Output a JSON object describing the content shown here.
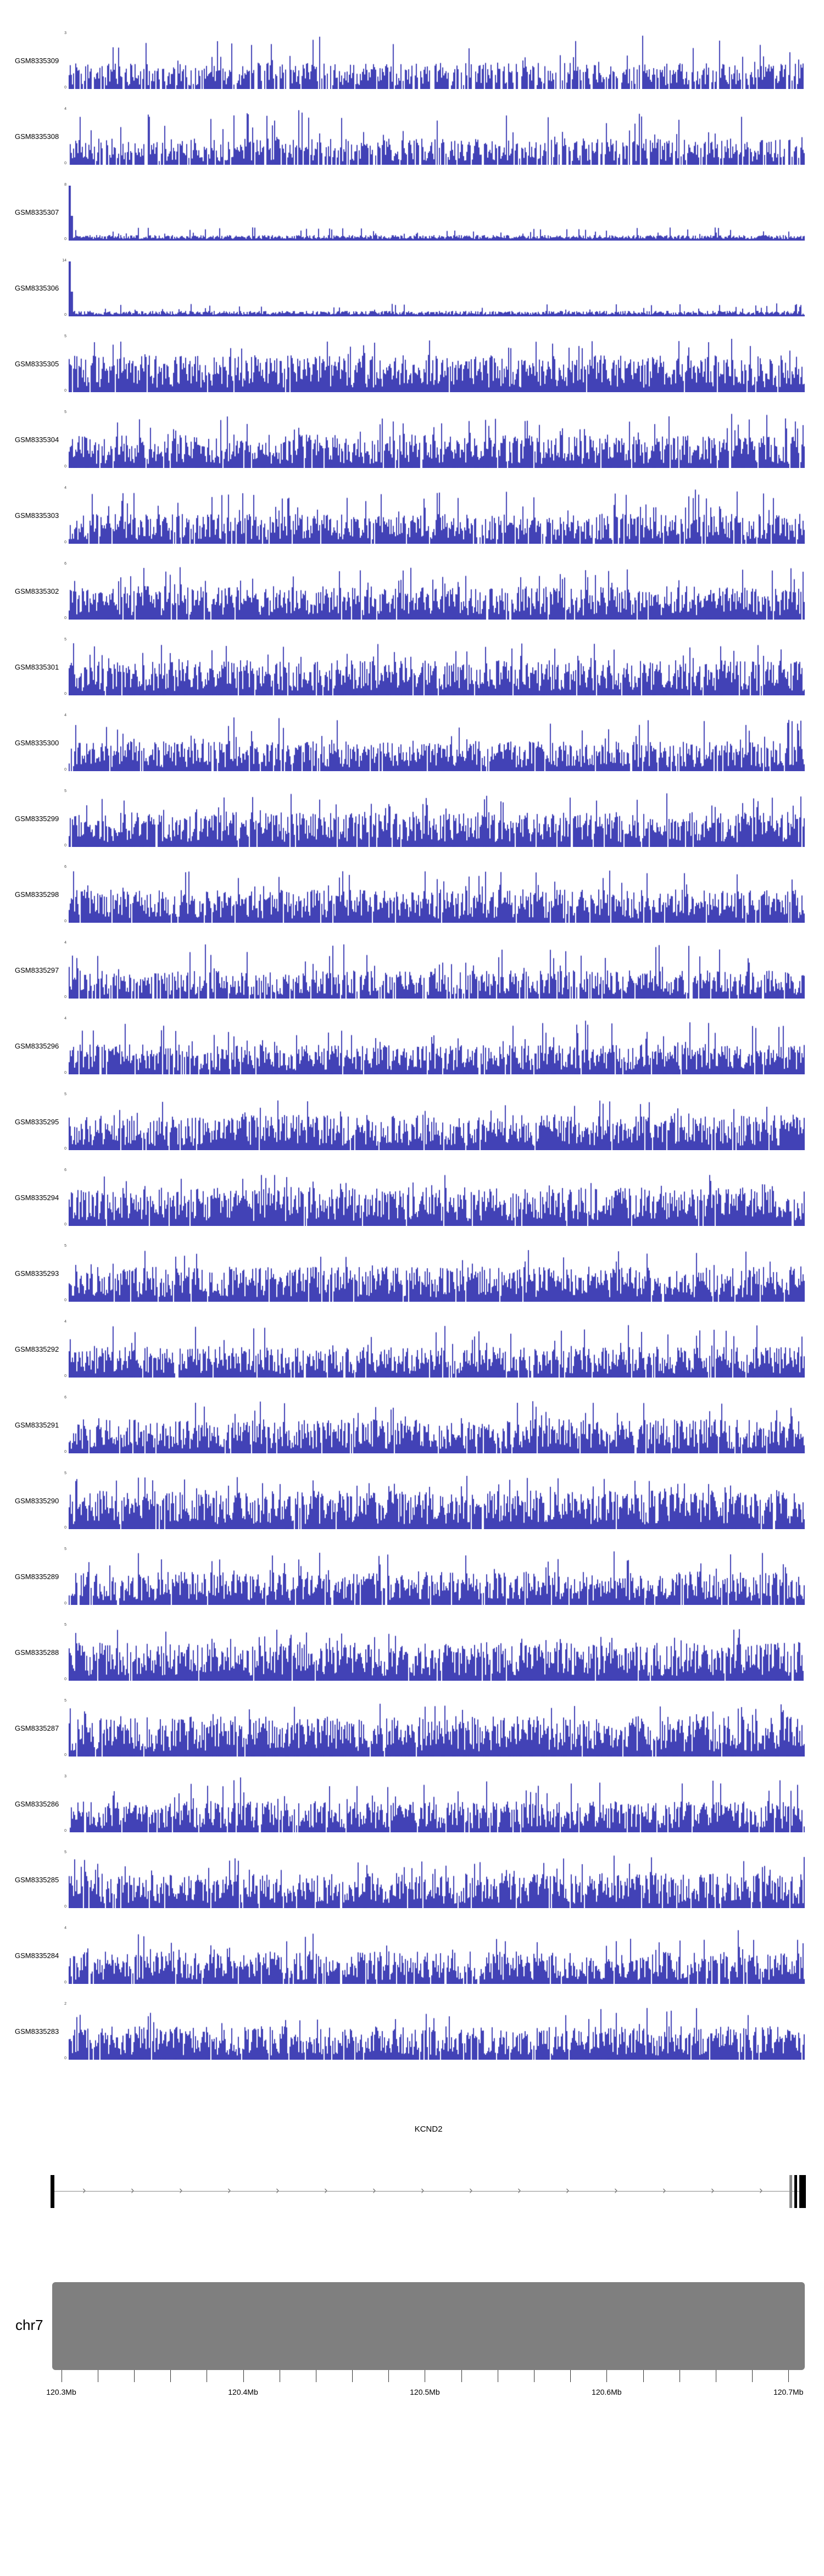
{
  "chart_data": {
    "type": "area",
    "title": "",
    "signal_color": "#2222AA",
    "x_axis": {
      "start": 120.295,
      "end": 120.709,
      "unit": "Mb",
      "minor_step": 0.02,
      "major_ticks": [
        120.3,
        120.4,
        120.5,
        120.6,
        120.7
      ],
      "tick_labels": [
        "120.3Mb",
        "120.4Mb",
        "120.5Mb",
        "120.6Mb",
        "120.7Mb"
      ]
    },
    "tracks": [
      {
        "label": "GSM8335309",
        "ymin": 0,
        "ymax": 3,
        "profile": "noise",
        "density": 0.78,
        "mean": 0.3,
        "seed": 1
      },
      {
        "label": "GSM8335308",
        "ymin": 0,
        "ymax": 4,
        "profile": "noise",
        "density": 0.82,
        "mean": 0.3,
        "seed": 2
      },
      {
        "label": "GSM8335307",
        "ymin": 0,
        "ymax": 8,
        "profile": "leftspike",
        "density": 1.0,
        "mean": 0.05,
        "seed": 3
      },
      {
        "label": "GSM8335306",
        "ymin": 0,
        "ymax": 14,
        "profile": "leftspike",
        "density": 1.0,
        "mean": 0.05,
        "seed": 4
      },
      {
        "label": "GSM8335305",
        "ymin": 0,
        "ymax": 5,
        "profile": "noise",
        "density": 0.97,
        "mean": 0.42,
        "seed": 5
      },
      {
        "label": "GSM8335304",
        "ymin": 0,
        "ymax": 5,
        "profile": "noise",
        "density": 0.95,
        "mean": 0.38,
        "seed": 6
      },
      {
        "label": "GSM8335303",
        "ymin": 0,
        "ymax": 4,
        "profile": "noise",
        "density": 0.92,
        "mean": 0.34,
        "seed": 7
      },
      {
        "label": "GSM8335302",
        "ymin": 0,
        "ymax": 6,
        "profile": "noise",
        "density": 0.95,
        "mean": 0.38,
        "seed": 8
      },
      {
        "label": "GSM8335301",
        "ymin": 0,
        "ymax": 5,
        "profile": "noise",
        "density": 0.96,
        "mean": 0.4,
        "seed": 9
      },
      {
        "label": "GSM8335300",
        "ymin": 0,
        "ymax": 4,
        "profile": "noise",
        "density": 0.93,
        "mean": 0.34,
        "seed": 10
      },
      {
        "label": "GSM8335299",
        "ymin": 0,
        "ymax": 5,
        "profile": "noise",
        "density": 0.96,
        "mean": 0.4,
        "seed": 11
      },
      {
        "label": "GSM8335298",
        "ymin": 0,
        "ymax": 6,
        "profile": "noise",
        "density": 0.95,
        "mean": 0.38,
        "seed": 12
      },
      {
        "label": "GSM8335297",
        "ymin": 0,
        "ymax": 4,
        "profile": "noise",
        "density": 0.9,
        "mean": 0.32,
        "seed": 13
      },
      {
        "label": "GSM8335296",
        "ymin": 0,
        "ymax": 4,
        "profile": "noise",
        "density": 0.93,
        "mean": 0.34,
        "seed": 14
      },
      {
        "label": "GSM8335295",
        "ymin": 0,
        "ymax": 5,
        "profile": "noise",
        "density": 0.96,
        "mean": 0.4,
        "seed": 15
      },
      {
        "label": "GSM8335294",
        "ymin": 0,
        "ymax": 6,
        "profile": "noise",
        "density": 0.97,
        "mean": 0.44,
        "seed": 16
      },
      {
        "label": "GSM8335293",
        "ymin": 0,
        "ymax": 5,
        "profile": "noise",
        "density": 0.96,
        "mean": 0.4,
        "seed": 17
      },
      {
        "label": "GSM8335292",
        "ymin": 0,
        "ymax": 4,
        "profile": "noise",
        "density": 0.93,
        "mean": 0.35,
        "seed": 18
      },
      {
        "label": "GSM8335291",
        "ymin": 0,
        "ymax": 6,
        "profile": "noise",
        "density": 0.95,
        "mean": 0.39,
        "seed": 19
      },
      {
        "label": "GSM8335290",
        "ymin": 0,
        "ymax": 5,
        "profile": "noise",
        "density": 0.97,
        "mean": 0.44,
        "seed": 20
      },
      {
        "label": "GSM8335289",
        "ymin": 0,
        "ymax": 5,
        "profile": "noise",
        "density": 0.95,
        "mean": 0.38,
        "seed": 21
      },
      {
        "label": "GSM8335288",
        "ymin": 0,
        "ymax": 5,
        "profile": "noise",
        "density": 0.97,
        "mean": 0.44,
        "seed": 22
      },
      {
        "label": "GSM8335287",
        "ymin": 0,
        "ymax": 5,
        "profile": "noise",
        "density": 0.98,
        "mean": 0.46,
        "seed": 23
      },
      {
        "label": "GSM8335286",
        "ymin": 0,
        "ymax": 3,
        "profile": "noise",
        "density": 0.93,
        "mean": 0.35,
        "seed": 24
      },
      {
        "label": "GSM8335285",
        "ymin": 0,
        "ymax": 5,
        "profile": "noise",
        "density": 0.96,
        "mean": 0.4,
        "seed": 25
      },
      {
        "label": "GSM8335284",
        "ymin": 0,
        "ymax": 4,
        "profile": "noise",
        "density": 0.94,
        "mean": 0.37,
        "seed": 26
      },
      {
        "label": "GSM8335283",
        "ymin": 0,
        "ymax": 2,
        "profile": "noise",
        "density": 0.95,
        "mean": 0.38,
        "seed": 27
      }
    ],
    "gene": {
      "name": "KCND2",
      "strand": "+"
    },
    "chromosome": {
      "name": "chr7"
    }
  }
}
